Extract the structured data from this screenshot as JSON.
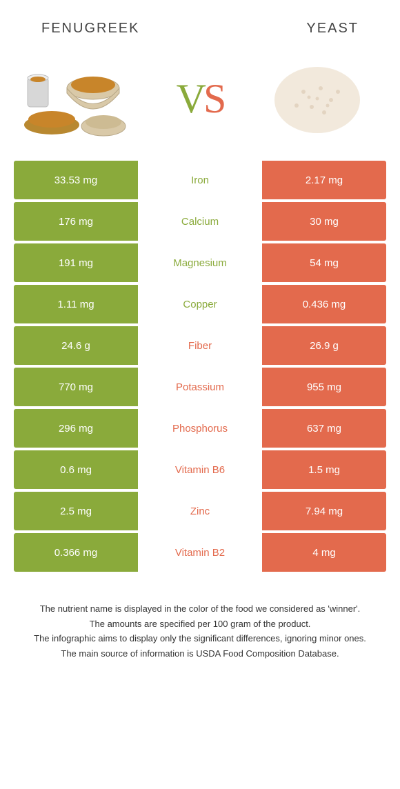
{
  "colors": {
    "left": "#8aaa3b",
    "right": "#e36a4d",
    "background": "#ffffff",
    "text": "#333333"
  },
  "header": {
    "left_title": "Fenugreek",
    "right_title": "Yeast",
    "vs_v": "V",
    "vs_s": "S"
  },
  "rows": [
    {
      "nutrient": "Iron",
      "left": "33.53 mg",
      "right": "2.17 mg",
      "winner": "left"
    },
    {
      "nutrient": "Calcium",
      "left": "176 mg",
      "right": "30 mg",
      "winner": "left"
    },
    {
      "nutrient": "Magnesium",
      "left": "191 mg",
      "right": "54 mg",
      "winner": "left"
    },
    {
      "nutrient": "Copper",
      "left": "1.11 mg",
      "right": "0.436 mg",
      "winner": "left"
    },
    {
      "nutrient": "Fiber",
      "left": "24.6 g",
      "right": "26.9 g",
      "winner": "right"
    },
    {
      "nutrient": "Potassium",
      "left": "770 mg",
      "right": "955 mg",
      "winner": "right"
    },
    {
      "nutrient": "Phosphorus",
      "left": "296 mg",
      "right": "637 mg",
      "winner": "right"
    },
    {
      "nutrient": "Vitamin B6",
      "left": "0.6 mg",
      "right": "1.5 mg",
      "winner": "right"
    },
    {
      "nutrient": "Zinc",
      "left": "2.5 mg",
      "right": "7.94 mg",
      "winner": "right"
    },
    {
      "nutrient": "Vitamin B2",
      "left": "0.366 mg",
      "right": "4 mg",
      "winner": "right"
    }
  ],
  "footer": {
    "line1": "The nutrient name is displayed in the color of the food we considered as 'winner'.",
    "line2": "The amounts are specified per 100 gram of the product.",
    "line3": "The infographic aims to display only the significant differences, ignoring minor ones.",
    "line4": "The main source of information is USDA Food Composition Database."
  }
}
